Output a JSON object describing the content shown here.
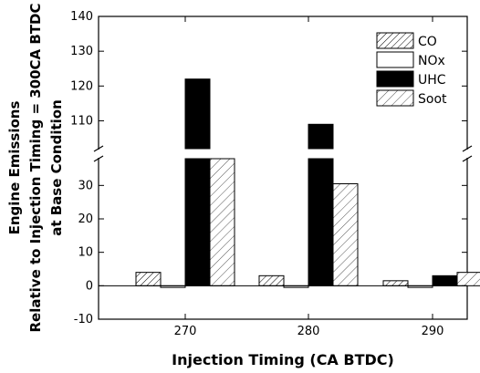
{
  "chart_data": {
    "type": "bar",
    "xlabel": "Injection Timing (CA BTDC)",
    "ylabel_lines": [
      "Engine Emissions",
      "Relative to Injection Timing = 300CA BTDC",
      "at Base Condition"
    ],
    "categories": [
      "270",
      "280",
      "290"
    ],
    "series": [
      {
        "name": "CO",
        "values": [
          4,
          3,
          1.5
        ],
        "fill": "hatch-narrow"
      },
      {
        "name": "NOx",
        "values": [
          -0.5,
          -0.5,
          -0.5
        ],
        "fill": "white"
      },
      {
        "name": "UHC",
        "values": [
          122,
          109,
          3
        ],
        "fill": "black"
      },
      {
        "name": "Soot",
        "values": [
          38.5,
          30.5,
          4
        ],
        "fill": "hatch-wide"
      }
    ],
    "axis_break": {
      "lower_range": [
        -10,
        38
      ],
      "upper_range": [
        102,
        140
      ]
    },
    "yticks_lower": [
      "-10",
      "0",
      "10",
      "20",
      "30"
    ],
    "yticks_upper": [
      "110",
      "120",
      "130",
      "140"
    ],
    "legend_position": "top-right",
    "grid": false
  }
}
